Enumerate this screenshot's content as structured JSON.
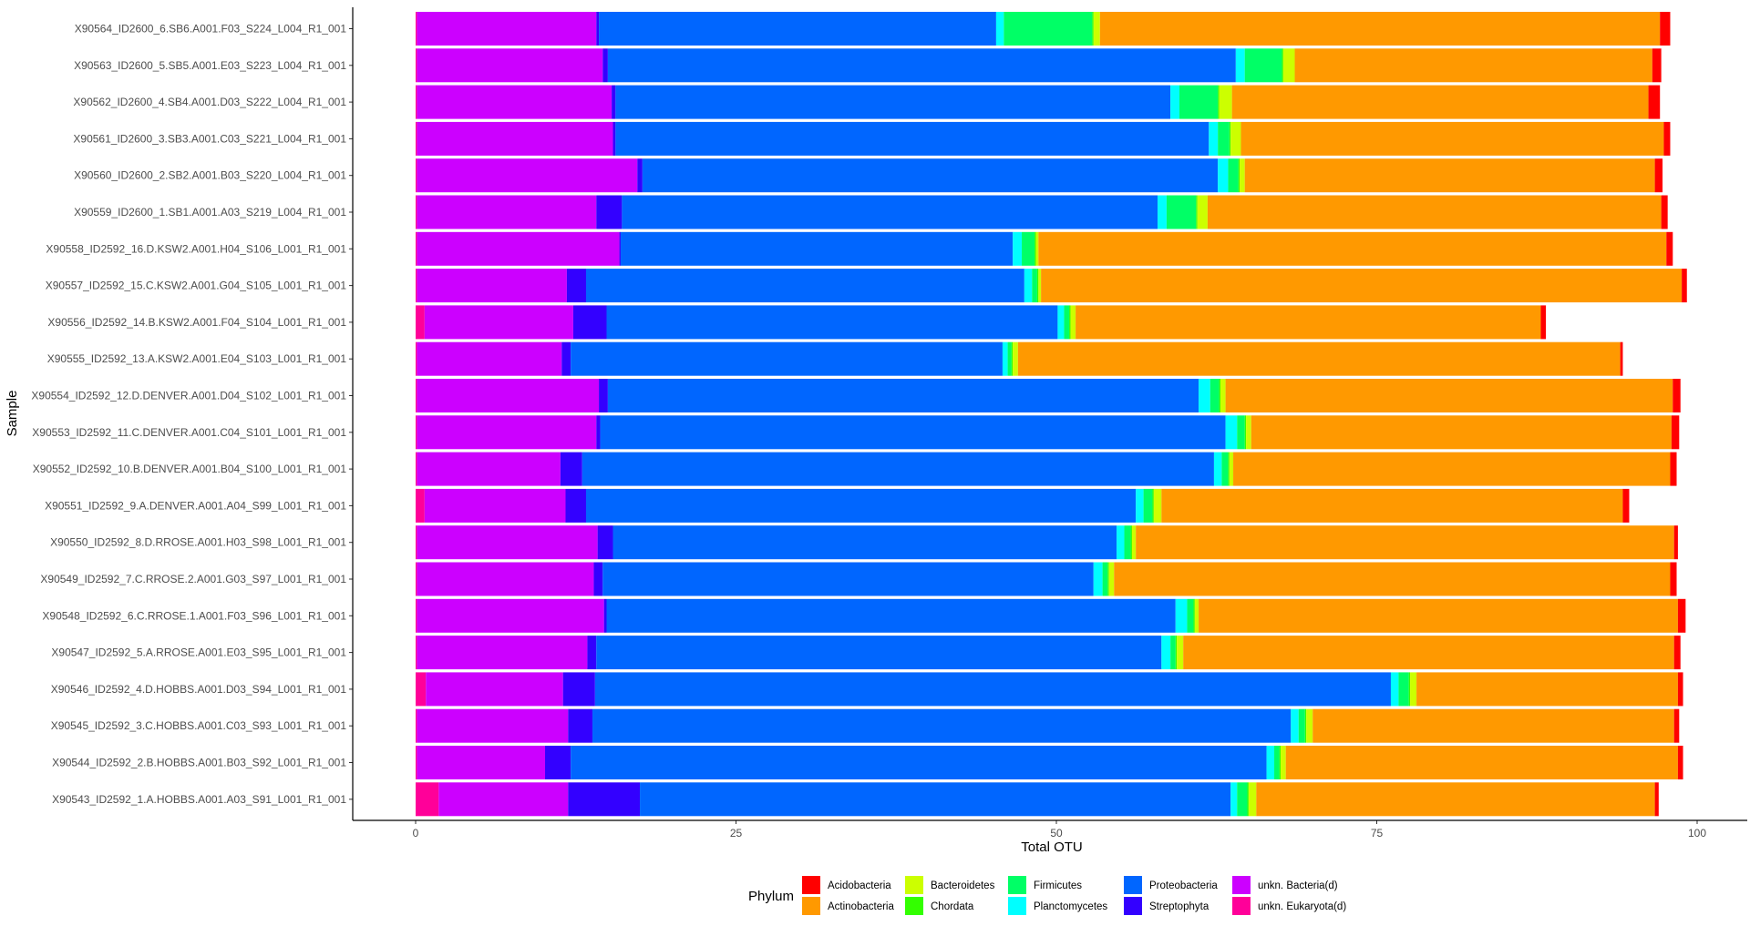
{
  "chart_data": {
    "type": "bar",
    "orientation": "horizontal",
    "stacked": true,
    "xlabel": "Total OTU",
    "ylabel": "Sample",
    "xlim": [
      0,
      100
    ],
    "xticks": [
      0,
      25,
      50,
      75,
      100
    ],
    "grid": false,
    "legend_title": "Phylum",
    "legend_position": "bottom",
    "stack_order": [
      "unkn. Eukaryota(d)",
      "unkn. Bacteria(d)",
      "Streptophyta",
      "Proteobacteria",
      "Planctomycetes",
      "Firmicutes",
      "Chordata",
      "Bacteroidetes",
      "Actinobacteria",
      "Acidobacteria"
    ],
    "legend_entries": [
      {
        "name": "Acidobacteria",
        "color": "#ff0000"
      },
      {
        "name": "Actinobacteria",
        "color": "#ff9900"
      },
      {
        "name": "Bacteroidetes",
        "color": "#ccff00"
      },
      {
        "name": "Chordata",
        "color": "#33ff00"
      },
      {
        "name": "Firmicutes",
        "color": "#00ff66"
      },
      {
        "name": "Planctomycetes",
        "color": "#00ffff"
      },
      {
        "name": "Proteobacteria",
        "color": "#0066ff"
      },
      {
        "name": "Streptophyta",
        "color": "#3300ff"
      },
      {
        "name": "unkn. Bacteria(d)",
        "color": "#cc00ff"
      },
      {
        "name": "unkn. Eukaryota(d)",
        "color": "#ff0099"
      }
    ],
    "categories": [
      "X90564_ID2600_6.SB6.A001.F03_S224_L004_R1_001",
      "X90563_ID2600_5.SB5.A001.E03_S223_L004_R1_001",
      "X90562_ID2600_4.SB4.A001.D03_S222_L004_R1_001",
      "X90561_ID2600_3.SB3.A001.C03_S221_L004_R1_001",
      "X90560_ID2600_2.SB2.A001.B03_S220_L004_R1_001",
      "X90559_ID2600_1.SB1.A001.A03_S219_L004_R1_001",
      "X90558_ID2592_16.D.KSW2.A001.H04_S106_L001_R1_001",
      "X90557_ID2592_15.C.KSW2.A001.G04_S105_L001_R1_001",
      "X90556_ID2592_14.B.KSW2.A001.F04_S104_L001_R1_001",
      "X90555_ID2592_13.A.KSW2.A001.E04_S103_L001_R1_001",
      "X90554_ID2592_12.D.DENVER.A001.D04_S102_L001_R1_001",
      "X90553_ID2592_11.C.DENVER.A001.C04_S101_L001_R1_001",
      "X90552_ID2592_10.B.DENVER.A001.B04_S100_L001_R1_001",
      "X90551_ID2592_9.A.DENVER.A001.A04_S99_L001_R1_001",
      "X90550_ID2592_8.D.RROSE.A001.H03_S98_L001_R1_001",
      "X90549_ID2592_7.C.RROSE.2.A001.G03_S97_L001_R1_001",
      "X90548_ID2592_6.C.RROSE.1.A001.F03_S96_L001_R1_001",
      "X90547_ID2592_5.A.RROSE.A001.E03_S95_L001_R1_001",
      "X90546_ID2592_4.D.HOBBS.A001.D03_S94_L001_R1_001",
      "X90545_ID2592_3.C.HOBBS.A001.C03_S93_L001_R1_001",
      "X90544_ID2592_2.B.HOBBS.A001.B03_S92_L001_R1_001",
      "X90543_ID2592_1.A.HOBBS.A001.A03_S91_L001_R1_001"
    ],
    "series": [
      {
        "name": "unkn. Eukaryota(d)",
        "values": [
          0.1,
          0.1,
          0.1,
          0.1,
          0.1,
          0.1,
          0.1,
          0.1,
          0.7,
          0.1,
          0.1,
          0.1,
          0.1,
          0.7,
          0.1,
          0.1,
          0.1,
          0.1,
          0.8,
          0.1,
          0.1,
          1.8
        ]
      },
      {
        "name": "unkn. Bacteria(d)",
        "values": [
          14.0,
          14.5,
          15.2,
          15.3,
          17.2,
          14.0,
          15.8,
          11.7,
          11.6,
          11.3,
          14.2,
          14.0,
          11.2,
          11.0,
          14.1,
          13.8,
          14.6,
          13.3,
          10.7,
          11.8,
          10.0,
          10.1
        ]
      },
      {
        "name": "Streptophyta",
        "values": [
          0.2,
          0.4,
          0.3,
          0.2,
          0.4,
          2.0,
          0.1,
          1.5,
          2.6,
          0.7,
          0.7,
          0.3,
          1.7,
          1.6,
          1.2,
          0.7,
          0.2,
          0.7,
          2.5,
          1.9,
          2.0,
          5.6
        ]
      },
      {
        "name": "Proteobacteria",
        "values": [
          31.0,
          49.0,
          43.3,
          46.3,
          44.9,
          41.8,
          30.6,
          34.2,
          35.2,
          33.7,
          46.1,
          48.8,
          49.3,
          42.9,
          39.3,
          38.3,
          44.4,
          44.1,
          62.1,
          54.5,
          54.3,
          46.1
        ]
      },
      {
        "name": "Planctomycetes",
        "values": [
          0.6,
          0.7,
          0.7,
          0.7,
          0.8,
          0.7,
          0.7,
          0.6,
          0.5,
          0.4,
          0.9,
          0.9,
          0.6,
          0.6,
          0.6,
          0.7,
          0.9,
          0.7,
          0.6,
          0.6,
          0.6,
          0.5
        ]
      },
      {
        "name": "Firmicutes",
        "values": [
          6.9,
          2.9,
          3.0,
          0.9,
          0.8,
          2.3,
          1.0,
          0.4,
          0.4,
          0.3,
          0.7,
          0.6,
          0.5,
          0.7,
          0.5,
          0.4,
          0.5,
          0.4,
          0.8,
          0.5,
          0.4,
          0.8
        ]
      },
      {
        "name": "Chordata",
        "values": [
          0.1,
          0.1,
          0.1,
          0.1,
          0.1,
          0.1,
          0.1,
          0.1,
          0.1,
          0.1,
          0.1,
          0.1,
          0.1,
          0.1,
          0.1,
          0.1,
          0.1,
          0.1,
          0.1,
          0.1,
          0.1,
          0.1
        ]
      },
      {
        "name": "Bacteroidetes",
        "values": [
          0.5,
          0.9,
          1.0,
          0.8,
          0.4,
          0.8,
          0.2,
          0.2,
          0.4,
          0.4,
          0.4,
          0.4,
          0.3,
          0.6,
          0.3,
          0.4,
          0.3,
          0.5,
          0.5,
          0.5,
          0.4,
          0.6
        ]
      },
      {
        "name": "Actinobacteria",
        "values": [
          43.7,
          27.9,
          32.5,
          33.0,
          32.0,
          35.4,
          49.0,
          50.0,
          36.3,
          47.0,
          34.9,
          32.8,
          34.1,
          36.0,
          42.0,
          43.4,
          37.4,
          38.3,
          20.4,
          28.2,
          30.6,
          31.1
        ]
      },
      {
        "name": "Acidobacteria",
        "values": [
          0.8,
          0.7,
          0.9,
          0.5,
          0.6,
          0.5,
          0.5,
          0.4,
          0.4,
          0.2,
          0.6,
          0.6,
          0.5,
          0.5,
          0.3,
          0.5,
          0.6,
          0.5,
          0.4,
          0.4,
          0.4,
          0.3
        ]
      }
    ]
  }
}
